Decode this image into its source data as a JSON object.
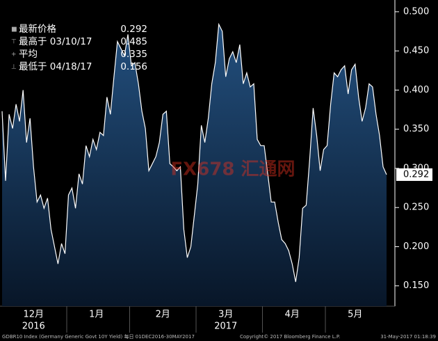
{
  "chart_data": {
    "type": "line",
    "categories": [
      null,
      null,
      null,
      null,
      null,
      null,
      null,
      null,
      null,
      "12月",
      null,
      null,
      null,
      null,
      null,
      null,
      null,
      null,
      null,
      null,
      null,
      null,
      null,
      null,
      null,
      null,
      null,
      "1月",
      null,
      null,
      null,
      null,
      null,
      null,
      null,
      null,
      null,
      null,
      null,
      null,
      null,
      null,
      null,
      null,
      null,
      null,
      "2月",
      null,
      null,
      null,
      null,
      null,
      null,
      null,
      null,
      null,
      null,
      null,
      null,
      null,
      null,
      null,
      null,
      null,
      "3月",
      null,
      null,
      null,
      null,
      null,
      null,
      null,
      null,
      null,
      null,
      null,
      null,
      null,
      null,
      null,
      null,
      null,
      null,
      "4月",
      null,
      null,
      null,
      null,
      null,
      null,
      null,
      null,
      null,
      null,
      null,
      null,
      null,
      null,
      null,
      null,
      null,
      "5月",
      null,
      null,
      null,
      null,
      null,
      null,
      null,
      null,
      null
    ],
    "year_labels": [
      {
        "index": 9,
        "label": "2016"
      },
      {
        "index": 64,
        "label": "2017"
      }
    ],
    "series": [
      {
        "name": "GDBR10 Index",
        "color": "#ffffff",
        "values": [
          0.373,
          0.284,
          0.369,
          0.351,
          0.382,
          0.36,
          0.4,
          0.333,
          0.364,
          0.302,
          0.257,
          0.266,
          0.249,
          0.262,
          0.222,
          0.2,
          0.178,
          0.204,
          0.191,
          0.266,
          0.275,
          0.249,
          0.293,
          0.28,
          0.329,
          0.315,
          0.337,
          0.324,
          0.346,
          0.342,
          0.391,
          0.369,
          0.417,
          0.462,
          0.453,
          0.444,
          0.471,
          0.431,
          0.435,
          0.408,
          0.373,
          0.351,
          0.297,
          0.306,
          0.315,
          0.333,
          0.369,
          0.373,
          0.306,
          0.302,
          0.297,
          0.302,
          0.222,
          0.186,
          0.2,
          0.24,
          0.28,
          0.355,
          0.333,
          0.364,
          0.408,
          0.435,
          0.484,
          0.475,
          0.417,
          0.44,
          0.449,
          0.435,
          0.458,
          0.408,
          0.422,
          0.404,
          0.408,
          0.337,
          0.329,
          0.329,
          0.293,
          0.257,
          0.257,
          0.231,
          0.209,
          0.204,
          0.195,
          0.178,
          0.155,
          0.186,
          0.249,
          0.253,
          0.311,
          0.377,
          0.342,
          0.297,
          0.324,
          0.329,
          0.382,
          0.422,
          0.417,
          0.426,
          0.431,
          0.395,
          0.426,
          0.433,
          0.391,
          0.36,
          0.377,
          0.408,
          0.404,
          0.369,
          0.342,
          0.302,
          0.292
        ]
      }
    ],
    "ylim": [
      0.124,
      0.515
    ],
    "yticks": [
      {
        "value": 0.15,
        "label": "0.150"
      },
      {
        "value": 0.2,
        "label": "0.200"
      },
      {
        "value": 0.25,
        "label": "0.250"
      },
      {
        "value": 0.3,
        "label": "0.300"
      },
      {
        "value": 0.35,
        "label": "0.350"
      },
      {
        "value": 0.4,
        "label": "0.400"
      },
      {
        "value": 0.45,
        "label": "0.450"
      },
      {
        "value": 0.5,
        "label": "0.500"
      }
    ],
    "last_label": {
      "value": 0.292,
      "label": "0.292"
    },
    "legend": [
      {
        "label": "最新价格",
        "value": 0.292
      },
      {
        "label": "最高于 03/10/17",
        "value": 0.485
      },
      {
        "label": "平均",
        "value": 0.335
      },
      {
        "label": "最低于 04/18/17",
        "value": 0.156
      }
    ],
    "watermark": "FX678 汇通网",
    "footer": [
      "GDBR10 Index (Germany Generic Govt 10Y Yield)  每日 01DEC2016-30MAY2017",
      "Copyright© 2017 Bloomberg Finance L.P.",
      "31-May-2017 01:18:39"
    ]
  }
}
